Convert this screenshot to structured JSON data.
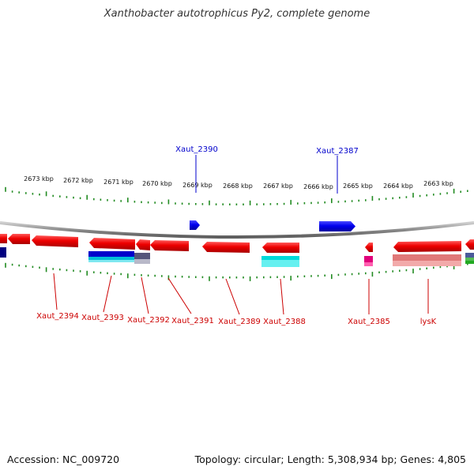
{
  "title": "Xanthobacter autotrophicus Py2, complete genome",
  "footer": {
    "accession": "Accession: NC_009720",
    "summary": "Topology: circular; Length: 5,308,934 bp; Genes: 4,805"
  },
  "scale_labels": [
    "2673 kbp",
    "2672 kbp",
    "2671 kbp",
    "2670 kbp",
    "2669 kbp",
    "2668 kbp",
    "2667 kbp",
    "2666 kbp",
    "2665 kbp",
    "2664 kbp",
    "2663 kbp"
  ],
  "labels_top": [
    "Xaut_2390",
    "Xaut_2387"
  ],
  "labels_bottom": [
    "Xaut_2394",
    "Xaut_2393",
    "Xaut_2392",
    "Xaut_2391",
    "Xaut_2389",
    "Xaut_2388",
    "Xaut_2385",
    "lysK"
  ],
  "colors": {
    "forward_gene": "#0000ee",
    "reverse_gene": "#ee0000",
    "backbone": "#888888",
    "tick": "#228B22",
    "label_top": "#0000cc",
    "label_bottom": "#cc0000"
  }
}
